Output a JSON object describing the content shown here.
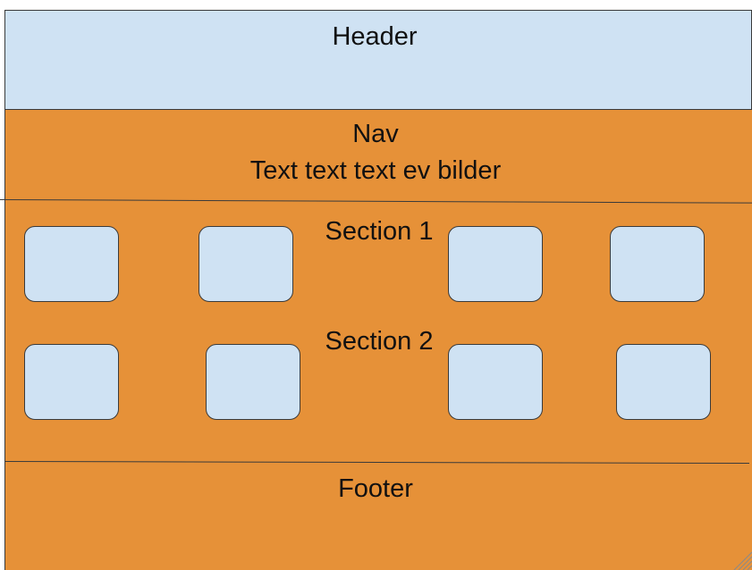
{
  "header": {
    "label": "Header"
  },
  "nav": {
    "label": "Nav",
    "text": "Text text text ev bilder"
  },
  "section1": {
    "label": "Section 1"
  },
  "section2": {
    "label": "Section 2"
  },
  "footer": {
    "label": "Footer"
  },
  "colors": {
    "light_blue": "#cfe2f3",
    "orange": "#e69138",
    "stroke": "#3a3a3a"
  }
}
